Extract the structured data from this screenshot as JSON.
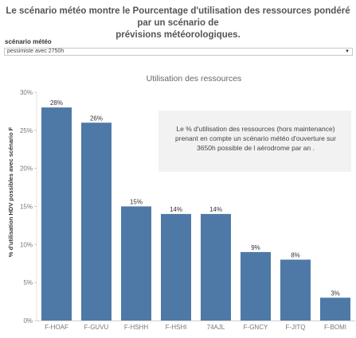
{
  "header": {
    "line1": "Le scénario météo montre le Pourcentage d'utilisation des ressources pondéré par un scénario de",
    "line2": "prévisions météorologiques."
  },
  "filter": {
    "label": "scénario météo",
    "value": "pessimiste avec 2750h"
  },
  "annotation": {
    "line1": "Le % d'utilisation des ressources (hors maintenance)",
    "line2": "prenant en compte un scénario météo d'ouverture sur",
    "line3": "3650h possible de l aérodrome par an ."
  },
  "chart_data": {
    "type": "bar",
    "title": "Utilisation des ressources",
    "ylabel": "% d'utilisation HDV possibles avec scénario F",
    "categories": [
      "F-HOAF",
      "F-GUVU",
      "F-HSHH",
      "F-HSHI",
      "74AJL",
      "F-GNCY",
      "F-JITQ",
      "F-BOMI"
    ],
    "values": [
      28,
      26,
      15,
      14,
      14,
      9,
      8,
      3
    ],
    "data_labels": [
      "28%",
      "26%",
      "15%",
      "14%",
      "14%",
      "9%",
      "8%",
      "3%"
    ],
    "ylim": [
      0,
      30
    ],
    "yticks": [
      0,
      5,
      10,
      15,
      20,
      25,
      30
    ],
    "ytick_labels": [
      "0%",
      "5%",
      "10%",
      "15%",
      "20%",
      "25%",
      "30%"
    ],
    "bar_color": "#4e79a7",
    "grid": false
  }
}
